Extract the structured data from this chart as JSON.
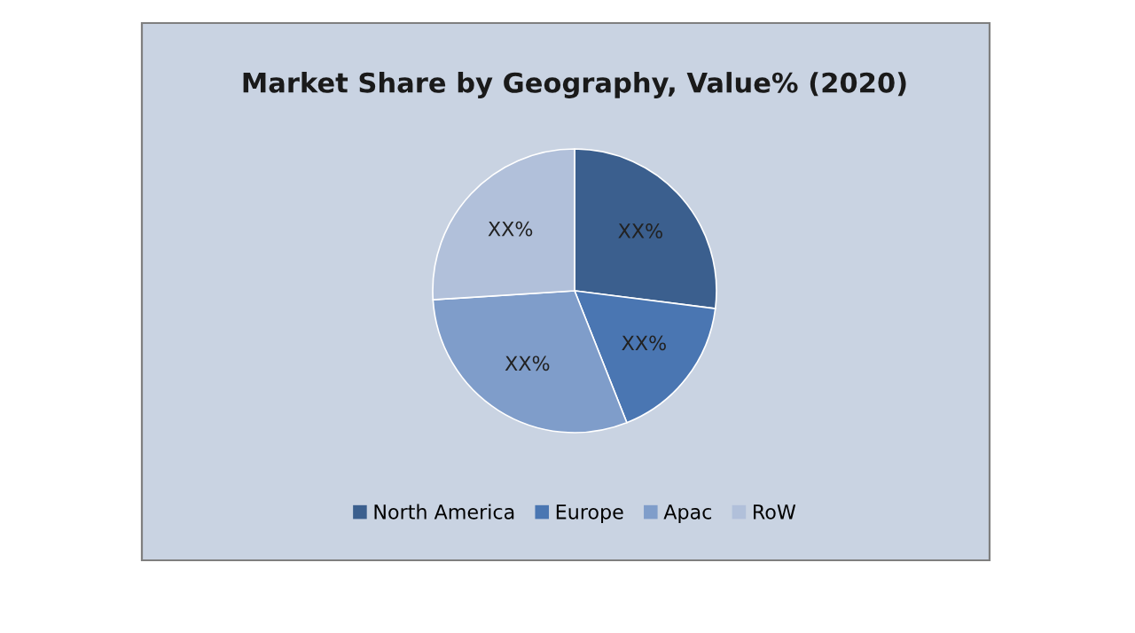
{
  "chart_data": {
    "type": "pie",
    "title": "Market Share by Geography, Value% (2020)",
    "categories": [
      "North America",
      "Europe",
      "Apac",
      "RoW"
    ],
    "values": [
      27,
      17,
      30,
      26
    ],
    "colors": [
      "#3b5f8e",
      "#4a76b2",
      "#7f9dca",
      "#b1c0da"
    ],
    "value_labels": [
      "XX%",
      "XX%",
      "XX%",
      "XX%"
    ],
    "legend": "bottom"
  }
}
